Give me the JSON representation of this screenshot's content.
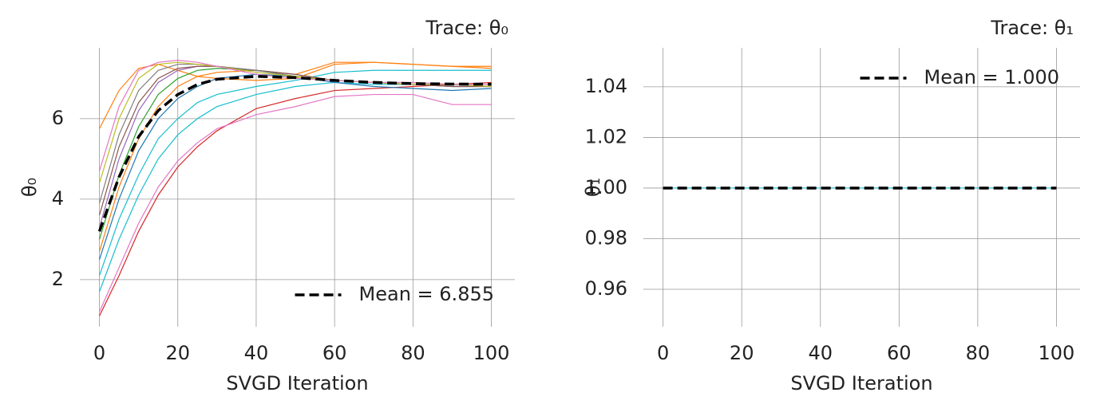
{
  "chart_data": [
    {
      "type": "line",
      "title": "Trace: θ₀",
      "xlabel": "SVGD Iteration",
      "ylabel": "θ₀",
      "x": [
        0,
        5,
        10,
        15,
        20,
        25,
        30,
        40,
        50,
        60,
        70,
        80,
        90,
        100
      ],
      "xlim": [
        -5,
        106
      ],
      "ylim": [
        0.83,
        7.76
      ],
      "xticks": [
        0,
        20,
        40,
        60,
        80,
        100
      ],
      "yticks": [
        2,
        4,
        6
      ],
      "grid": true,
      "legend": "lower right",
      "series": [
        {
          "color": "#ff7f0e",
          "values": [
            5.75,
            6.7,
            7.25,
            7.35,
            7.2,
            7.05,
            7.0,
            6.95,
            7.0,
            7.35,
            7.4,
            7.35,
            7.3,
            7.25
          ]
        },
        {
          "color": "#d62728",
          "values": [
            1.1,
            2.1,
            3.2,
            4.1,
            4.8,
            5.3,
            5.7,
            6.25,
            6.5,
            6.7,
            6.75,
            6.8,
            6.85,
            6.9
          ]
        },
        {
          "color": "#e377c2",
          "values": [
            1.2,
            2.3,
            3.4,
            4.3,
            4.95,
            5.4,
            5.75,
            6.1,
            6.3,
            6.55,
            6.6,
            6.6,
            6.35,
            6.35
          ]
        },
        {
          "color": "#17becf",
          "values": [
            1.7,
            3.0,
            4.1,
            5.0,
            5.6,
            6.0,
            6.3,
            6.6,
            6.8,
            6.9,
            6.85,
            6.85,
            6.8,
            6.8
          ]
        },
        {
          "color": "#17becf",
          "values": [
            2.1,
            3.5,
            4.6,
            5.5,
            6.0,
            6.4,
            6.6,
            6.8,
            6.95,
            7.15,
            7.2,
            7.2,
            7.2,
            7.2
          ]
        },
        {
          "color": "#1f77b4",
          "values": [
            2.5,
            4.0,
            5.2,
            6.0,
            6.5,
            6.8,
            7.0,
            7.1,
            7.05,
            6.9,
            6.8,
            6.75,
            6.7,
            6.75
          ]
        },
        {
          "color": "#ff7f0e",
          "values": [
            2.7,
            4.3,
            5.5,
            6.3,
            6.8,
            7.05,
            7.15,
            7.2,
            7.1,
            7.4,
            7.4,
            7.35,
            7.3,
            7.3
          ]
        },
        {
          "color": "#2ca02c",
          "values": [
            3.0,
            4.6,
            5.8,
            6.6,
            7.0,
            7.2,
            7.25,
            7.2,
            7.05,
            6.95,
            6.9,
            6.85,
            6.85,
            6.85
          ]
        },
        {
          "color": "#9467bd",
          "values": [
            3.3,
            5.0,
            6.2,
            6.9,
            7.2,
            7.3,
            7.3,
            7.2,
            7.1,
            6.95,
            6.9,
            6.85,
            6.8,
            6.8
          ]
        },
        {
          "color": "#8c564b",
          "values": [
            3.6,
            5.3,
            6.4,
            7.0,
            7.25,
            7.3,
            7.3,
            7.2,
            7.1,
            6.95,
            6.9,
            6.85,
            6.8,
            6.8
          ]
        },
        {
          "color": "#7f7f7f",
          "values": [
            3.9,
            5.6,
            6.7,
            7.2,
            7.35,
            7.35,
            7.3,
            7.2,
            7.05,
            6.95,
            6.9,
            6.9,
            6.85,
            6.85
          ]
        },
        {
          "color": "#bcbd22",
          "values": [
            4.4,
            6.0,
            7.0,
            7.35,
            7.4,
            7.35,
            7.3,
            7.15,
            7.05,
            6.95,
            6.9,
            6.85,
            6.85,
            6.8
          ]
        },
        {
          "color": "#e377c2",
          "values": [
            4.7,
            6.3,
            7.2,
            7.4,
            7.45,
            7.4,
            7.3,
            7.1,
            7.0,
            6.95,
            6.9,
            6.9,
            6.85,
            6.85
          ]
        },
        {
          "name": "Mean = 6.855",
          "color": "#000000",
          "linestyle": "dashed",
          "values": [
            3.2,
            4.55,
            5.55,
            6.2,
            6.6,
            6.85,
            6.98,
            7.05,
            7.02,
            6.95,
            6.9,
            6.87,
            6.86,
            6.855
          ]
        }
      ]
    },
    {
      "type": "line",
      "title": "Trace: θ₁",
      "xlabel": "SVGD Iteration",
      "ylabel": "θ₁",
      "x": [
        0,
        100
      ],
      "xlim": [
        -5,
        106
      ],
      "ylim": [
        0.9452,
        1.0554
      ],
      "xticks": [
        0,
        20,
        40,
        60,
        80,
        100
      ],
      "yticks": [
        0.96,
        0.98,
        {
          "value": 1,
          "label": "1.00"
        },
        1.02,
        1.04
      ],
      "grid": true,
      "legend": "upper right",
      "series": [
        {
          "color": "#17becf",
          "values": [
            1,
            1
          ]
        },
        {
          "name": "Mean = 1.000",
          "color": "#000000",
          "linestyle": "dashed",
          "values": [
            1,
            1
          ]
        }
      ]
    }
  ]
}
